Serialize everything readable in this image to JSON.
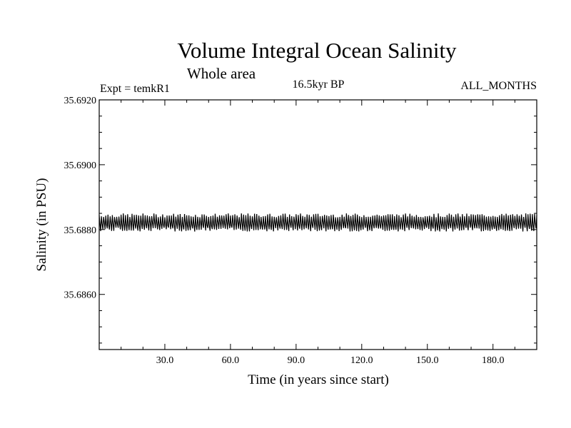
{
  "chart_data": {
    "type": "line",
    "title": "Volume Integral Ocean Salinity",
    "subtitle": "Whole area",
    "header_left": "Expt = temkR1",
    "header_center": "16.5kyr BP",
    "header_right": "ALL_MONTHS",
    "xlabel": "Time (in years since start)",
    "ylabel": "Salinity (in PSU)",
    "xlim": [
      0,
      200
    ],
    "ylim": [
      35.6843,
      35.692
    ],
    "x_ticks": [
      30,
      60,
      90,
      120,
      150,
      180
    ],
    "x_tick_labels": [
      "30.0",
      "60.0",
      "90.0",
      "120.0",
      "150.0",
      "180.0"
    ],
    "y_ticks": [
      35.692,
      35.69,
      35.688,
      35.686
    ],
    "y_tick_labels": [
      "35.6920",
      "35.6900",
      "35.6880",
      "35.6860"
    ],
    "series": [
      {
        "name": "Salinity",
        "color": "#000000",
        "mean": 35.68822,
        "amplitude": 0.00022,
        "period_years": 1.0,
        "x_start": 0,
        "x_end": 200,
        "notes": "annual cycle oscillating roughly between 35.6880 and 35.6884 PSU"
      }
    ]
  }
}
